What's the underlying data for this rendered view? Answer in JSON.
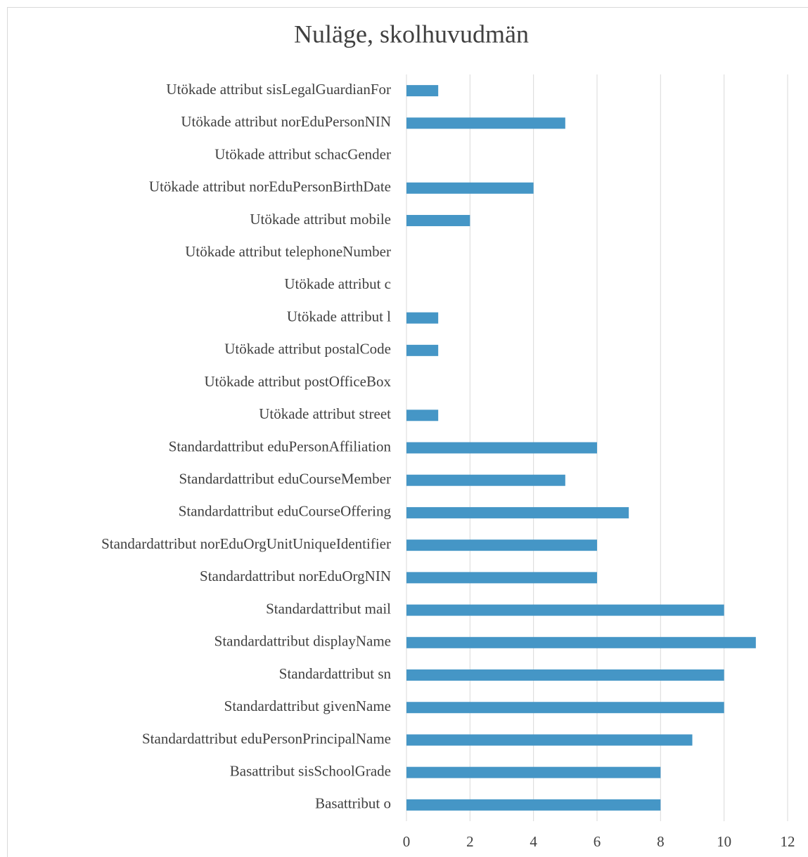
{
  "chart_data": {
    "type": "bar",
    "orientation": "horizontal",
    "title": "Nuläge, skolhuvudmän",
    "categories": [
      "Utökade attribut sisLegalGuardianFor",
      "Utökade attribut norEduPersonNIN",
      "Utökade attribut schacGender",
      "Utökade attribut norEduPersonBirthDate",
      "Utökade attribut mobile",
      "Utökade attribut telephoneNumber",
      "Utökade attribut c",
      "Utökade attribut l",
      "Utökade attribut postalCode",
      "Utökade attribut postOfficeBox",
      "Utökade attribut street",
      "Standardattribut eduPersonAffiliation",
      "Standardattribut eduCourseMember",
      "Standardattribut eduCourseOffering",
      "Standardattribut norEduOrgUnitUniqueIdentifier",
      "Standardattribut norEduOrgNIN",
      "Standardattribut mail",
      "Standardattribut displayName",
      "Standardattribut sn",
      "Standardattribut givenName",
      "Standardattribut eduPersonPrincipalName",
      "Basattribut sisSchoolGrade",
      "Basattribut o"
    ],
    "values": [
      1,
      5,
      0,
      4,
      2,
      0,
      0,
      1,
      1,
      0,
      1,
      6,
      5,
      7,
      6,
      6,
      10,
      11,
      10,
      10,
      9,
      8,
      8
    ],
    "color": "#4596c6",
    "xlim": [
      0,
      12
    ],
    "xticks": [
      0,
      2,
      4,
      6,
      8,
      10,
      12
    ],
    "grid": true
  }
}
